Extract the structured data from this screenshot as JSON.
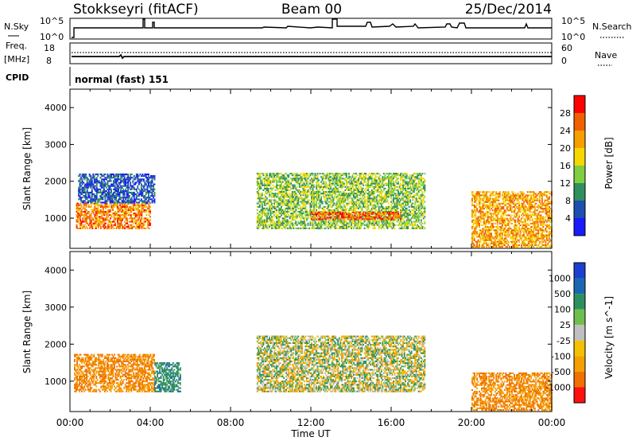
{
  "header": {
    "station": "Stokkseyri (fitACF)",
    "beam": "Beam 00",
    "date": "25/Dec/2014"
  },
  "nsky_panel": {
    "left_label": "N.Sky",
    "right_label": "N.Search",
    "left_ticks": [
      "10^5",
      "10^0"
    ],
    "right_ticks": [
      "10^5",
      "10^0"
    ]
  },
  "freq_panel": {
    "left_label_1": "Freq.",
    "left_label_2": "[MHz]",
    "left_ticks": [
      "18",
      "8"
    ],
    "right_label": "Nave",
    "right_ticks": [
      "60",
      "0"
    ]
  },
  "cpid_panel": {
    "label": "CPID",
    "mode_text": "normal (fast) 151"
  },
  "colors": {
    "background": "#ffffff",
    "frame": "#000000",
    "power_scale": [
      "#1a1aff",
      "#1c4fb0",
      "#2f8f5f",
      "#7fcf3f",
      "#f5d800",
      "#f5a000",
      "#f06000",
      "#ff0000"
    ],
    "velocity_scale": [
      "#1c3fd0",
      "#1c68b0",
      "#2e8f5e",
      "#6fbf4f",
      "#bfbfbf",
      "#f5c000",
      "#f5a000",
      "#f07000",
      "#ff1010"
    ]
  },
  "chart_data": [
    {
      "type": "heatmap",
      "name": "power",
      "ylabel": "Slant Range [km]",
      "xlabel": "Time UT",
      "x_ticks": [
        "00:00",
        "04:00",
        "08:00",
        "12:00",
        "16:00",
        "20:00",
        "00:00"
      ],
      "y_ticks": [
        "1000",
        "2000",
        "3000",
        "4000"
      ],
      "ylim": [
        180,
        4500
      ],
      "colorbar": {
        "label": "Power [dB]",
        "ticks": [
          "4",
          "8",
          "12",
          "16",
          "20",
          "24",
          "28"
        ],
        "range": [
          0,
          32
        ]
      },
      "regions": [
        {
          "t0": 0.3,
          "t1": 4.0,
          "r0": 700,
          "r1": 1400,
          "value": 24
        },
        {
          "t0": 0.4,
          "t1": 4.2,
          "r0": 1400,
          "r1": 2200,
          "value": 6
        },
        {
          "t0": 9.3,
          "t1": 17.7,
          "r0": 700,
          "r1": 2200,
          "value": 14
        },
        {
          "t0": 12.0,
          "t1": 16.5,
          "r0": 950,
          "r1": 1150,
          "value": 26
        },
        {
          "t0": 20.0,
          "t1": 24.0,
          "r0": 200,
          "r1": 1700,
          "value": 22
        }
      ]
    },
    {
      "type": "heatmap",
      "name": "velocity",
      "ylabel": "Slant Range [km]",
      "xlabel": "Time UT",
      "x_ticks": [
        "00:00",
        "04:00",
        "08:00",
        "12:00",
        "16:00",
        "20:00",
        "00:00"
      ],
      "y_ticks": [
        "1000",
        "2000",
        "3000",
        "4000"
      ],
      "ylim": [
        180,
        4500
      ],
      "colorbar": {
        "label": "Velocity [m s^-1]",
        "ticks": [
          "1000",
          "500",
          "100",
          "25",
          "-25",
          "-100",
          "-500",
          "-1000"
        ]
      },
      "regions": [
        {
          "t0": 0.2,
          "t1": 4.2,
          "r0": 700,
          "r1": 1700,
          "value": -300
        },
        {
          "t0": 4.2,
          "t1": 5.5,
          "r0": 700,
          "r1": 1500,
          "value": 200
        },
        {
          "t0": 9.3,
          "t1": 17.7,
          "r0": 700,
          "r1": 2200,
          "value": 0
        },
        {
          "t0": 20.0,
          "t1": 24.0,
          "r0": 200,
          "r1": 1200,
          "value": -300
        }
      ]
    }
  ]
}
